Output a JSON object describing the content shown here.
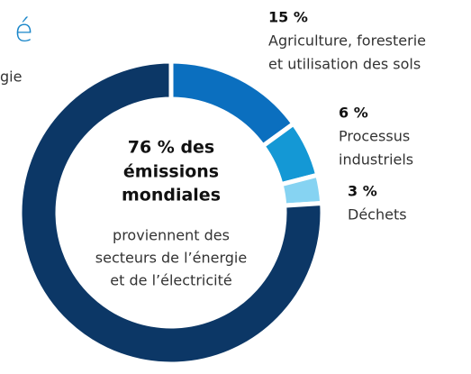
{
  "chart_data": {
    "type": "donut",
    "title": "é",
    "categories": [
      [
        "Agriculture, foresterie",
        "et utilisation des sols"
      ],
      [
        "Processus",
        "industriels"
      ],
      [
        "Déchets"
      ],
      [
        "gie"
      ]
    ],
    "values": [
      15,
      6,
      3,
      76
    ],
    "value_labels": [
      "15 %",
      "6 %",
      "3 %",
      "76 % des"
    ],
    "colors": [
      "#0b6fbf",
      "#1498d5",
      "#86d3f2",
      "#0c3766"
    ],
    "center": {
      "bold": [
        "émissions",
        "mondiales"
      ],
      "text": [
        "proviennent des",
        "secteurs de l’énergie",
        "et de l’électricité"
      ]
    }
  }
}
